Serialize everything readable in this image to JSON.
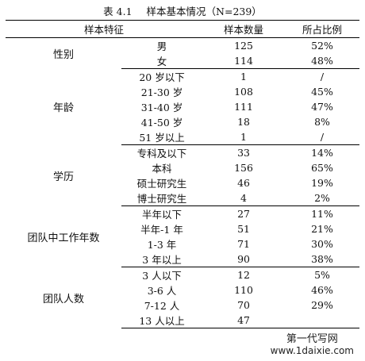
{
  "caption": {
    "label": "表 4.1",
    "title": "样本基本情况（N=239）"
  },
  "headers": {
    "feature": "样本特征",
    "count": "样本数量",
    "ratio": "所占比例"
  },
  "groups": [
    {
      "name": "性别",
      "rows": [
        {
          "item": "男",
          "count": "125",
          "ratio": "52%"
        },
        {
          "item": "女",
          "count": "114",
          "ratio": "48%"
        }
      ]
    },
    {
      "name": "年龄",
      "rows": [
        {
          "item": "20 岁以下",
          "count": "1",
          "ratio": "/"
        },
        {
          "item": "21-30 岁",
          "count": "108",
          "ratio": "45%"
        },
        {
          "item": "31-40 岁",
          "count": "111",
          "ratio": "47%"
        },
        {
          "item": "41-50 岁",
          "count": "18",
          "ratio": "8%"
        },
        {
          "item": "51 岁以上",
          "count": "1",
          "ratio": "/"
        }
      ]
    },
    {
      "name": "学历",
      "rows": [
        {
          "item": "专科及以下",
          "count": "33",
          "ratio": "14%"
        },
        {
          "item": "本科",
          "count": "156",
          "ratio": "65%"
        },
        {
          "item": "硕士研究生",
          "count": "46",
          "ratio": "19%"
        },
        {
          "item": "博士研究生",
          "count": "4",
          "ratio": "2%"
        }
      ]
    },
    {
      "name": "团队中工作年数",
      "rows": [
        {
          "item": "半年以下",
          "count": "27",
          "ratio": "11%"
        },
        {
          "item": "半年-1 年",
          "count": "51",
          "ratio": "21%"
        },
        {
          "item": "1-3 年",
          "count": "71",
          "ratio": "30%"
        },
        {
          "item": "3 年以上",
          "count": "90",
          "ratio": "38%"
        }
      ]
    },
    {
      "name": "团队人数",
      "rows": [
        {
          "item": "3 人以下",
          "count": "12",
          "ratio": "5%"
        },
        {
          "item": "3-6 人",
          "count": "110",
          "ratio": "46%"
        },
        {
          "item": "7-12 人",
          "count": "70",
          "ratio": "29%"
        },
        {
          "item": "13 人以上",
          "count": "47",
          "ratio": ""
        }
      ]
    }
  ],
  "watermark": {
    "line1": "第一代写网",
    "line2": "www.1daixie.com"
  }
}
